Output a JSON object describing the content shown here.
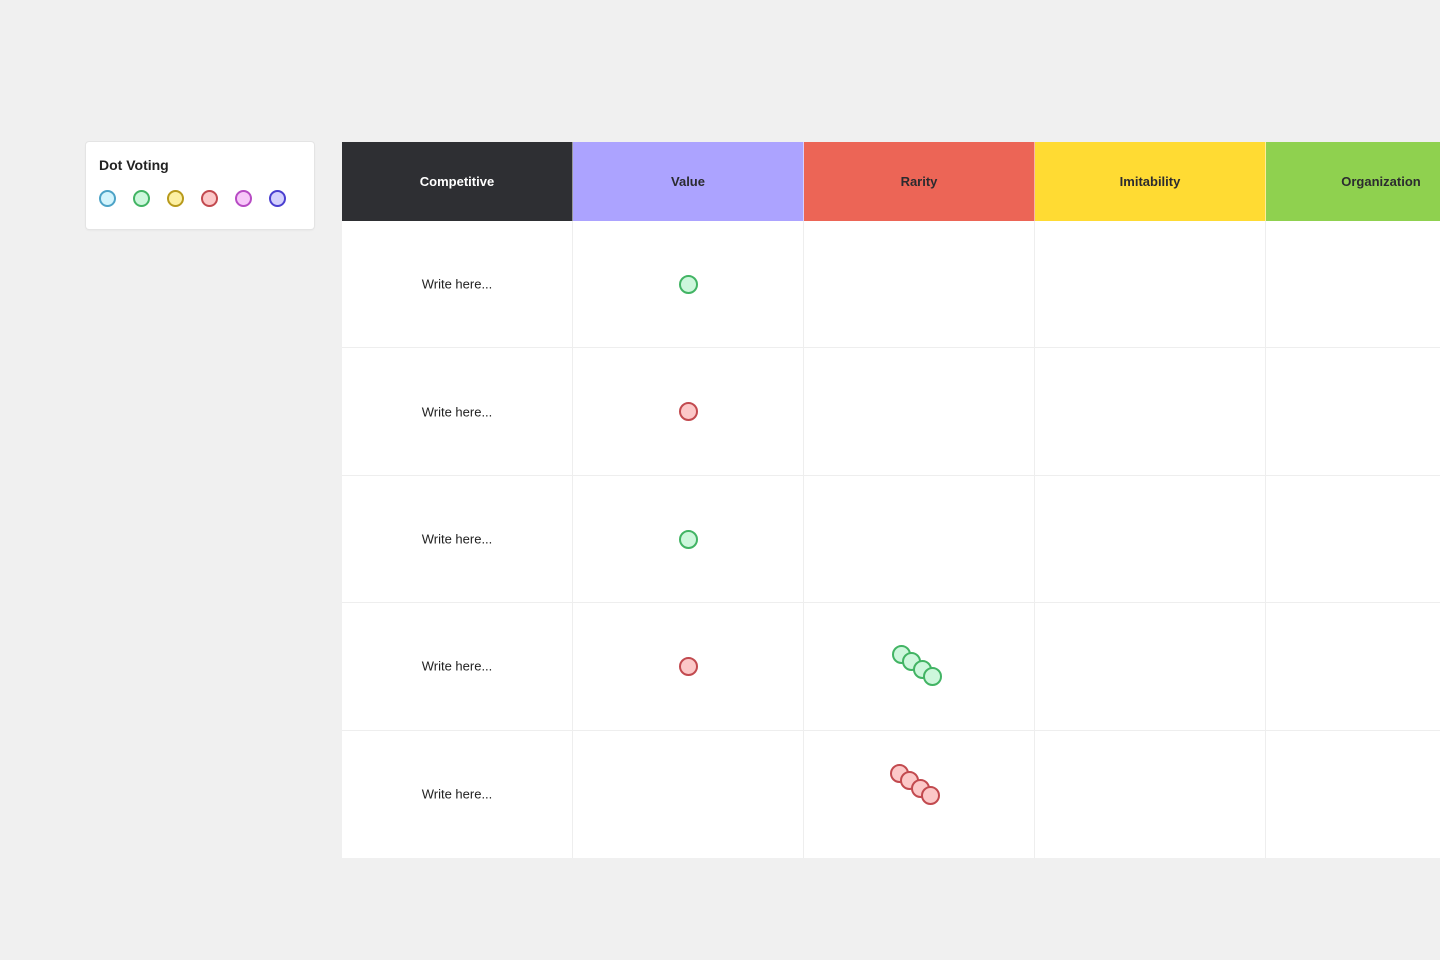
{
  "legend": {
    "title": "Dot Voting",
    "dots": [
      {
        "name": "blue",
        "fill": "#d3f4fc",
        "stroke": "#4da3c7"
      },
      {
        "name": "green",
        "fill": "#cdf7dc",
        "stroke": "#42b464"
      },
      {
        "name": "yellow",
        "fill": "#fdf0a2",
        "stroke": "#b89a1c"
      },
      {
        "name": "red",
        "fill": "#fcc8c8",
        "stroke": "#c24a4f"
      },
      {
        "name": "pink",
        "fill": "#f7c8f9",
        "stroke": "#b74bc4"
      },
      {
        "name": "purple",
        "fill": "#d4d0fd",
        "stroke": "#4a3fd0"
      }
    ]
  },
  "table": {
    "columns": [
      {
        "label": "Competitive",
        "bg": "#2e2f33",
        "color": "#ffffff"
      },
      {
        "label": "Value",
        "bg": "#aca3ff",
        "color": "#2b2b2f"
      },
      {
        "label": "Rarity",
        "bg": "#ec6556",
        "color": "#2b2b2f"
      },
      {
        "label": "Imitability",
        "bg": "#ffdb33",
        "color": "#2b2b2f"
      },
      {
        "label": "Organization",
        "bg": "#8fd14f",
        "color": "#2b2b2f"
      }
    ],
    "rows": [
      {
        "text": "Write here...",
        "value_dot": "green",
        "rarity_dots": []
      },
      {
        "text": "Write here...",
        "value_dot": "red",
        "rarity_dots": []
      },
      {
        "text": "Write here...",
        "value_dot": "green",
        "rarity_dots": []
      },
      {
        "text": "Write here...",
        "value_dot": "red",
        "rarity_dots": [
          "green",
          "green",
          "green",
          "green"
        ]
      },
      {
        "text": "Write here...",
        "value_dot": null,
        "rarity_dots": [
          "red",
          "red",
          "red",
          "red"
        ]
      }
    ]
  },
  "colors": {
    "green": {
      "fill": "#cdf7dc",
      "stroke": "#42b464"
    },
    "red": {
      "fill": "#fcc8c8",
      "stroke": "#c24a4f"
    }
  }
}
